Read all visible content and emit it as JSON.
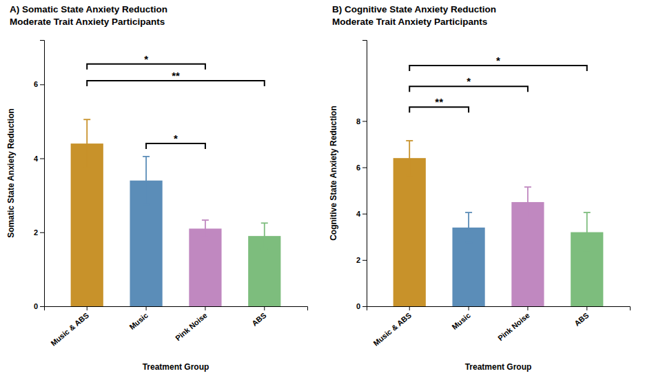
{
  "chart_data": [
    {
      "type": "bar",
      "title": "A) Somatic State Anxiety Reduction",
      "subtitle": "Moderate Trait Anxiety Participants",
      "categories": [
        "Music & ABS",
        "Music",
        "Pink Noise",
        "ABS"
      ],
      "values": [
        4.4,
        3.4,
        2.1,
        1.9
      ],
      "errors": [
        0.65,
        0.65,
        0.23,
        0.35
      ],
      "colors": [
        "#C8922A",
        "#5B8DB8",
        "#C088C0",
        "#7DBD7D"
      ],
      "xlabel": "Treatment Group",
      "ylabel": "Somatic State Anxiety Reduction",
      "ylim": [
        0,
        7.2
      ],
      "yticks": [
        0,
        2,
        4,
        6
      ],
      "grid": false,
      "annotations": [
        {
          "from": "Music & ABS",
          "to": "Pink Noise",
          "y": 6.55,
          "label": "*"
        },
        {
          "from": "Music & ABS",
          "to": "ABS",
          "y": 6.1,
          "label": "**"
        },
        {
          "from": "Music",
          "to": "Pink Noise",
          "y": 4.4,
          "label": "*"
        }
      ]
    },
    {
      "type": "bar",
      "title": "B) Cognitive State Anxiety Reduction",
      "subtitle": "Moderate Trait Anxiety Participants",
      "categories": [
        "Music & ABS",
        "Music",
        "Pink Noise",
        "ABS"
      ],
      "values": [
        6.4,
        3.4,
        4.5,
        3.2
      ],
      "errors": [
        0.75,
        0.65,
        0.65,
        0.85
      ],
      "colors": [
        "#C8922A",
        "#5B8DB8",
        "#C088C0",
        "#7DBD7D"
      ],
      "xlabel": "Treatment Group",
      "ylabel": "Cognitive State Anxiety Reduction",
      "ylim": [
        0,
        11.5
      ],
      "yticks": [
        0,
        2,
        4,
        6,
        8
      ],
      "grid": false,
      "annotations": [
        {
          "from": "Music & ABS",
          "to": "Music",
          "y": 8.6,
          "label": "**"
        },
        {
          "from": "Music & ABS",
          "to": "Pink Noise",
          "y": 9.5,
          "label": "*"
        },
        {
          "from": "Music & ABS",
          "to": "ABS",
          "y": 10.4,
          "label": "*"
        }
      ]
    }
  ]
}
